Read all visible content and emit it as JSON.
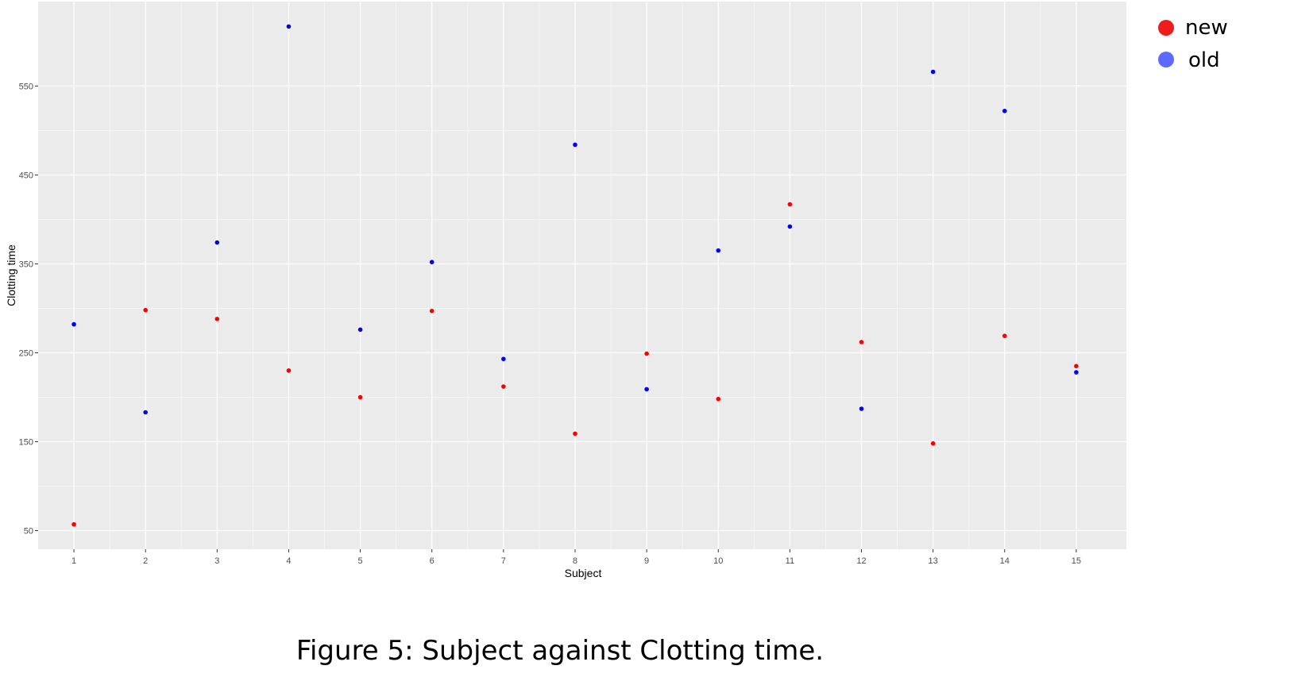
{
  "caption": "Figure 5: Subject against Clotting time.",
  "chart_data": {
    "type": "scatter",
    "xlabel": "Subject",
    "ylabel": "Clotting time",
    "x": [
      1,
      2,
      3,
      4,
      5,
      6,
      7,
      8,
      9,
      10,
      11,
      12,
      13,
      14,
      15
    ],
    "x_ticks": [
      "1",
      "2",
      "3",
      "4",
      "5",
      "6",
      "7",
      "8",
      "9",
      "10",
      "11",
      "12",
      "13",
      "14",
      "15"
    ],
    "y_ticks": [
      50,
      150,
      250,
      350,
      450,
      550
    ],
    "xlim": [
      0.5,
      15.7
    ],
    "ylim": [
      29,
      645
    ],
    "grid": true,
    "legend_position": "top-right",
    "series": [
      {
        "name": "new",
        "color": "#ff0000",
        "legend_color": "#ee1c1c",
        "values": [
          57,
          298,
          288,
          230,
          200,
          297,
          212,
          159,
          249,
          198,
          417,
          262,
          148,
          269,
          235
        ]
      },
      {
        "name": "old",
        "color": "#0000ff",
        "legend_color": "#5b6bff",
        "values": [
          282,
          183,
          374,
          617,
          276,
          352,
          243,
          484,
          209,
          365,
          392,
          187,
          566,
          522,
          228
        ]
      }
    ]
  }
}
